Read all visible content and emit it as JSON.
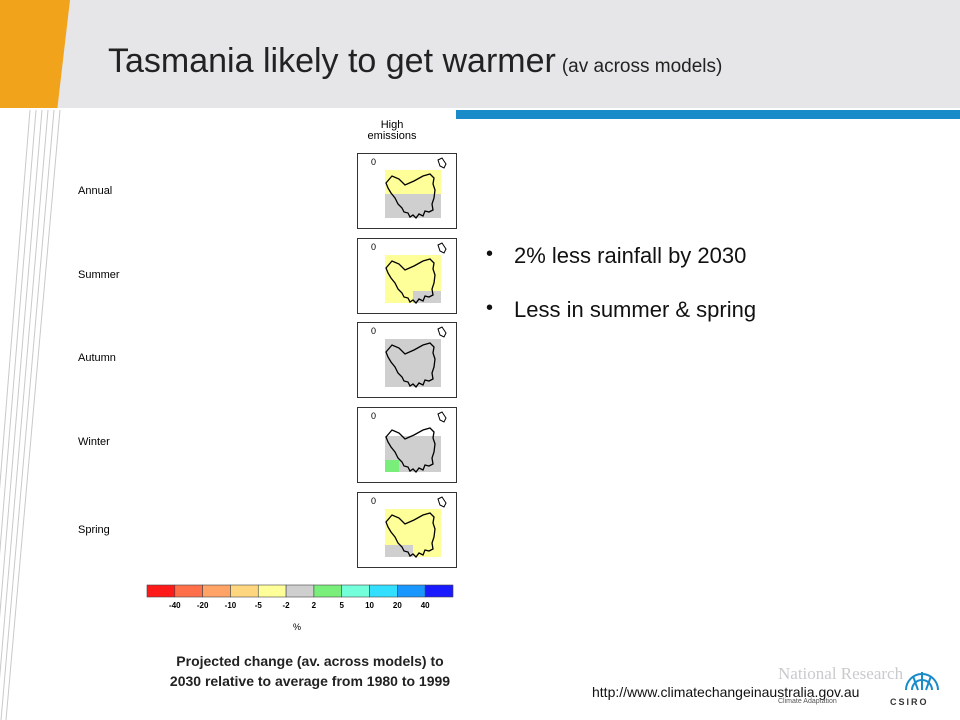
{
  "slide": {
    "title": "Tasmania likely to get warmer",
    "title_sub": "(av across models)",
    "column_header": "High emissions",
    "panels": [
      {
        "label": "Annual",
        "cells": [
          "w",
          "w",
          "w",
          "w",
          "w",
          "w",
          "w",
          "y",
          "y",
          "y",
          "y",
          "w",
          "w",
          "y",
          "y",
          "y",
          "y",
          "w",
          "w",
          "g",
          "g",
          "g",
          "g",
          "w",
          "w",
          "g",
          "g",
          "g",
          "g",
          "w",
          "w",
          "w",
          "w",
          "w",
          "w",
          "w"
        ]
      },
      {
        "label": "Summer",
        "cells": [
          "w",
          "w",
          "w",
          "w",
          "w",
          "w",
          "w",
          "y",
          "y",
          "y",
          "y",
          "w",
          "w",
          "y",
          "y",
          "y",
          "y",
          "w",
          "w",
          "y",
          "y",
          "y",
          "y",
          "w",
          "w",
          "y",
          "y",
          "g",
          "g",
          "w",
          "w",
          "w",
          "w",
          "w",
          "w",
          "w"
        ]
      },
      {
        "label": "Autumn",
        "cells": [
          "w",
          "w",
          "w",
          "w",
          "w",
          "w",
          "w",
          "g",
          "g",
          "g",
          "g",
          "w",
          "w",
          "g",
          "g",
          "g",
          "g",
          "w",
          "w",
          "g",
          "g",
          "g",
          "g",
          "w",
          "w",
          "g",
          "g",
          "g",
          "g",
          "w",
          "w",
          "w",
          "w",
          "w",
          "w",
          "w"
        ]
      },
      {
        "label": "Winter",
        "cells": [
          "w",
          "w",
          "w",
          "w",
          "w",
          "w",
          "w",
          "w",
          "w",
          "w",
          "w",
          "w",
          "w",
          "g",
          "g",
          "g",
          "g",
          "w",
          "w",
          "g",
          "g",
          "g",
          "g",
          "w",
          "w",
          "n",
          "g",
          "g",
          "g",
          "w",
          "w",
          "w",
          "w",
          "w",
          "w",
          "w"
        ]
      },
      {
        "label": "Spring",
        "cells": [
          "w",
          "w",
          "w",
          "w",
          "w",
          "w",
          "w",
          "y",
          "y",
          "y",
          "y",
          "w",
          "w",
          "y",
          "y",
          "y",
          "y",
          "w",
          "w",
          "y",
          "y",
          "y",
          "y",
          "w",
          "w",
          "g",
          "g",
          "y",
          "y",
          "w",
          "w",
          "w",
          "w",
          "w",
          "w",
          "w"
        ]
      }
    ],
    "cell_colors": {
      "w": "#ffffff",
      "y": "#ffff99",
      "g": "#cfcfcf",
      "n": "#7aee7a"
    },
    "panel_corner_label": "0",
    "colorbar": {
      "colors": [
        "#ff1a1a",
        "#ff704a",
        "#ffa366",
        "#ffd680",
        "#ffff99",
        "#cfcfcf",
        "#7aee7a",
        "#73ffd9",
        "#33dfff",
        "#1a96ff",
        "#1a1aff"
      ],
      "ticks": [
        "-40",
        "-20",
        "-10",
        "-5",
        "-2",
        "2",
        "5",
        "10",
        "20",
        "40"
      ],
      "unit": "%"
    },
    "caption_line1": "Projected change (av. across models) to",
    "caption_line2": "2030 relative to average from 1980 to 1999",
    "bullets": [
      "2%  less rainfall by 2030",
      "Less in summer & spring"
    ],
    "url": "http://www.climatechangeinaustralia.gov.au",
    "logo": {
      "name_fragment": "National Research",
      "program": "Climate Adaptation",
      "org": "CSIRO"
    },
    "accent_colors": {
      "orange": "#f2a31c",
      "blue": "#1a8bc9",
      "header_gray": "#e6e6e8"
    }
  }
}
